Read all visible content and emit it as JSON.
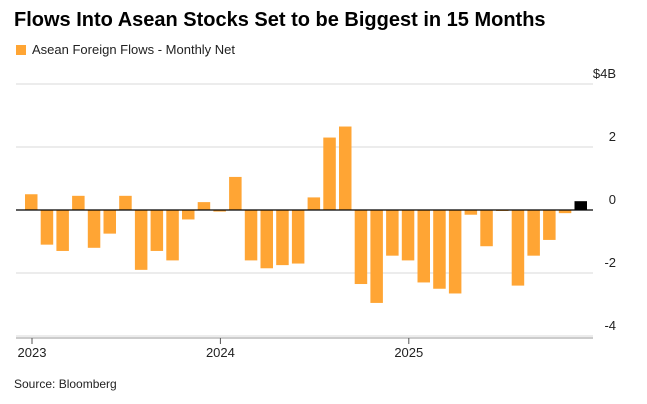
{
  "title": "Flows Into Asean Stocks Set to be Biggest in 15 Months",
  "source": "Source: Bloomberg",
  "chart_data": {
    "type": "bar",
    "series": [
      {
        "name": "Asean Foreign Flows - Monthly Net",
        "color": "#FFA534",
        "highlight_color": "#000000",
        "categories": [
          "Jan 2023",
          "Feb 2023",
          "Mar 2023",
          "Apr 2023",
          "May 2023",
          "Jun 2023",
          "Jul 2023",
          "Aug 2023",
          "Sep 2023",
          "Oct 2023",
          "Nov 2023",
          "Dec 2023",
          "Jan 2024",
          "Feb 2024",
          "Mar 2024",
          "Apr 2024",
          "May 2024",
          "Jun 2024",
          "Jul 2024",
          "Aug 2024",
          "Sep 2024",
          "Oct 2024",
          "Nov 2024",
          "Dec 2024",
          "Jan 2025",
          "Feb 2025",
          "Mar 2025",
          "Apr 2025",
          "May 2025",
          "Jun 2025",
          "Jul 2025",
          "Aug 2025",
          "Sep 2025",
          "Oct 2025",
          "Nov 2025",
          "Dec 2025"
        ],
        "values": [
          0.5,
          -1.1,
          -1.3,
          0.45,
          -1.2,
          -0.75,
          0.45,
          -1.9,
          -1.3,
          -1.6,
          -0.3,
          0.25,
          -0.05,
          1.05,
          -1.6,
          -1.85,
          -1.75,
          -1.7,
          0.4,
          2.3,
          2.65,
          -2.35,
          -2.95,
          -1.45,
          -1.6,
          -2.3,
          -2.5,
          -2.65,
          -0.15,
          -1.15,
          -0.02,
          -2.4,
          -1.45,
          -0.95,
          -0.1,
          0.28
        ],
        "highlight_index": 35
      }
    ],
    "y_ticks": [
      {
        "value": 4,
        "label": "$4B"
      },
      {
        "value": 2,
        "label": "2"
      },
      {
        "value": 0,
        "label": "0"
      },
      {
        "value": -2,
        "label": "-2"
      },
      {
        "value": -4,
        "label": "-4"
      }
    ],
    "x_ticks": [
      {
        "index": 0,
        "label": "2023"
      },
      {
        "index": 12,
        "label": "2024"
      },
      {
        "index": 24,
        "label": "2025"
      }
    ],
    "ylim": [
      -4.1,
      4.2
    ],
    "grid": true,
    "legend_position": "top-left"
  }
}
